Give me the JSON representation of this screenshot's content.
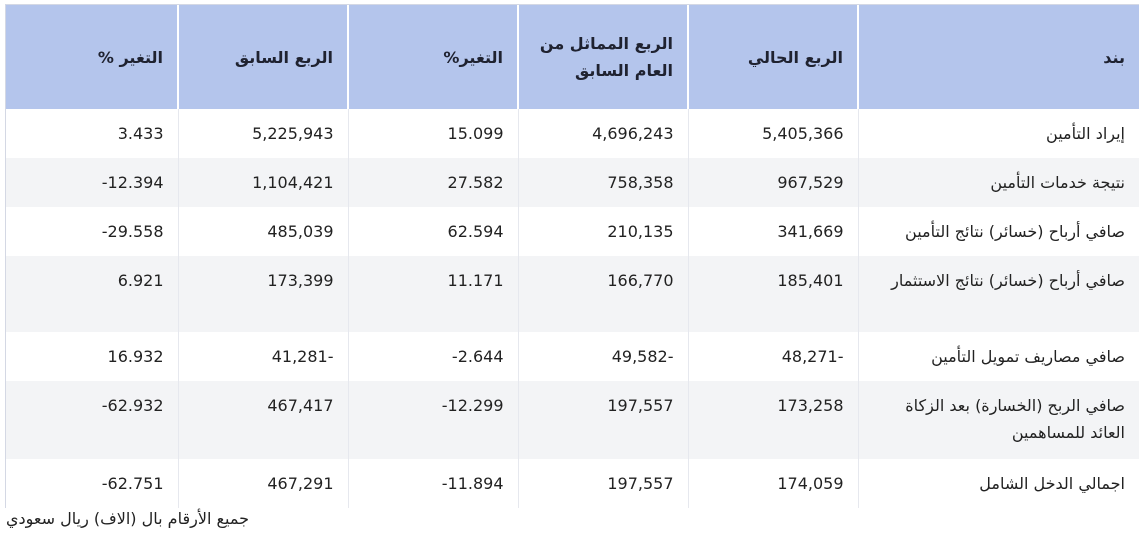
{
  "table": {
    "headers": {
      "item": "بند",
      "current_quarter": "الربع الحالي",
      "same_quarter_last_year": "الربع المماثل من العام السابق",
      "change_yoy": "التغير%",
      "previous_quarter": "الربع السابق",
      "change_qoq": "التغير %"
    },
    "rows": [
      {
        "item": "إيراد التأمين",
        "current": "5,405,366",
        "same_last_year": "4,696,243",
        "change_yoy": "15.099",
        "previous": "5,225,943",
        "change_qoq": "3.433"
      },
      {
        "item": "نتيجة خدمات التأمين",
        "current": "967,529",
        "same_last_year": "758,358",
        "change_yoy": "27.582",
        "previous": "1,104,421",
        "change_qoq": "12.394-"
      },
      {
        "item": "صافي أرباح (خسائر) نتائج التأمين",
        "current": "341,669",
        "same_last_year": "210,135",
        "change_yoy": "62.594",
        "previous": "485,039",
        "change_qoq": "29.558-"
      },
      {
        "item": "صافي أرباح (خسائر) نتائج الاستثمار",
        "current": "185,401",
        "same_last_year": "166,770",
        "change_yoy": "11.171",
        "previous": "173,399",
        "change_qoq": "6.921"
      },
      {
        "item": "صافي مصاريف تمويل التأمين",
        "current": "-48,271",
        "same_last_year": "-49,582",
        "change_yoy": "2.644-",
        "previous": "-41,281",
        "change_qoq": "16.932"
      },
      {
        "item": "صافي الربح (الخسارة) بعد الزكاة العائد للمساهمين",
        "current": "173,258",
        "same_last_year": "197,557",
        "change_yoy": "12.299-",
        "previous": "467,417",
        "change_qoq": "62.932-"
      },
      {
        "item": "اجمالي الدخل الشامل",
        "current": "174,059",
        "same_last_year": "197,557",
        "change_yoy": "11.894-",
        "previous": "467,291",
        "change_qoq": "62.751-"
      }
    ]
  },
  "footnote": "جميع الأرقام بال (الاف) ريال سعودي",
  "colors": {
    "header_bg": "#b4c5ec",
    "positive": "#2bb24c",
    "negative": "#e04a4a"
  }
}
